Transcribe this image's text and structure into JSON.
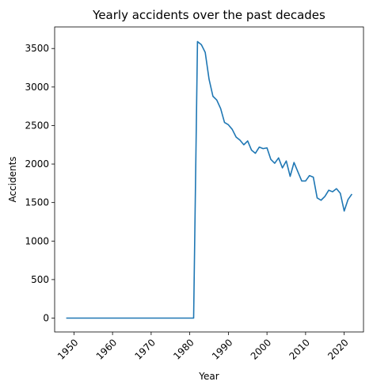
{
  "chart_data": {
    "type": "line",
    "title": "Yearly accidents over the past decades",
    "xlabel": "Year",
    "ylabel": "Accidents",
    "xlim": [
      1945,
      2025
    ],
    "ylim": [
      -180,
      3780
    ],
    "xticks": [
      1950,
      1960,
      1970,
      1980,
      1990,
      2000,
      2010,
      2020
    ],
    "yticks": [
      0,
      500,
      1000,
      1500,
      2000,
      2500,
      3000,
      3500
    ],
    "grid": false,
    "legend": "none",
    "series": [
      {
        "color": "#1f77b4",
        "x": [
          1948,
          1949,
          1950,
          1951,
          1952,
          1953,
          1954,
          1955,
          1956,
          1957,
          1958,
          1959,
          1960,
          1961,
          1962,
          1963,
          1964,
          1965,
          1966,
          1967,
          1968,
          1969,
          1970,
          1971,
          1972,
          1973,
          1974,
          1975,
          1976,
          1977,
          1978,
          1979,
          1980,
          1981,
          1982,
          1983,
          1984,
          1985,
          1986,
          1987,
          1988,
          1989,
          1990,
          1991,
          1992,
          1993,
          1994,
          1995,
          1996,
          1997,
          1998,
          1999,
          2000,
          2001,
          2002,
          2003,
          2004,
          2005,
          2006,
          2007,
          2008,
          2009,
          2010,
          2011,
          2012,
          2013,
          2014,
          2015,
          2016,
          2017,
          2018,
          2019,
          2020,
          2021,
          2022
        ],
        "values": [
          0,
          0,
          0,
          0,
          0,
          0,
          0,
          0,
          0,
          0,
          0,
          0,
          0,
          0,
          0,
          0,
          0,
          0,
          0,
          0,
          0,
          0,
          0,
          0,
          0,
          0,
          0,
          0,
          0,
          0,
          0,
          0,
          0,
          0,
          3590,
          3550,
          3450,
          3100,
          2880,
          2830,
          2720,
          2540,
          2510,
          2450,
          2350,
          2310,
          2250,
          2300,
          2180,
          2140,
          2220,
          2200,
          2210,
          2060,
          2010,
          2080,
          1950,
          2040,
          1840,
          2020,
          1900,
          1780,
          1780,
          1850,
          1830,
          1560,
          1530,
          1580,
          1660,
          1640,
          1680,
          1620,
          1390,
          1540,
          1610
        ]
      }
    ]
  }
}
